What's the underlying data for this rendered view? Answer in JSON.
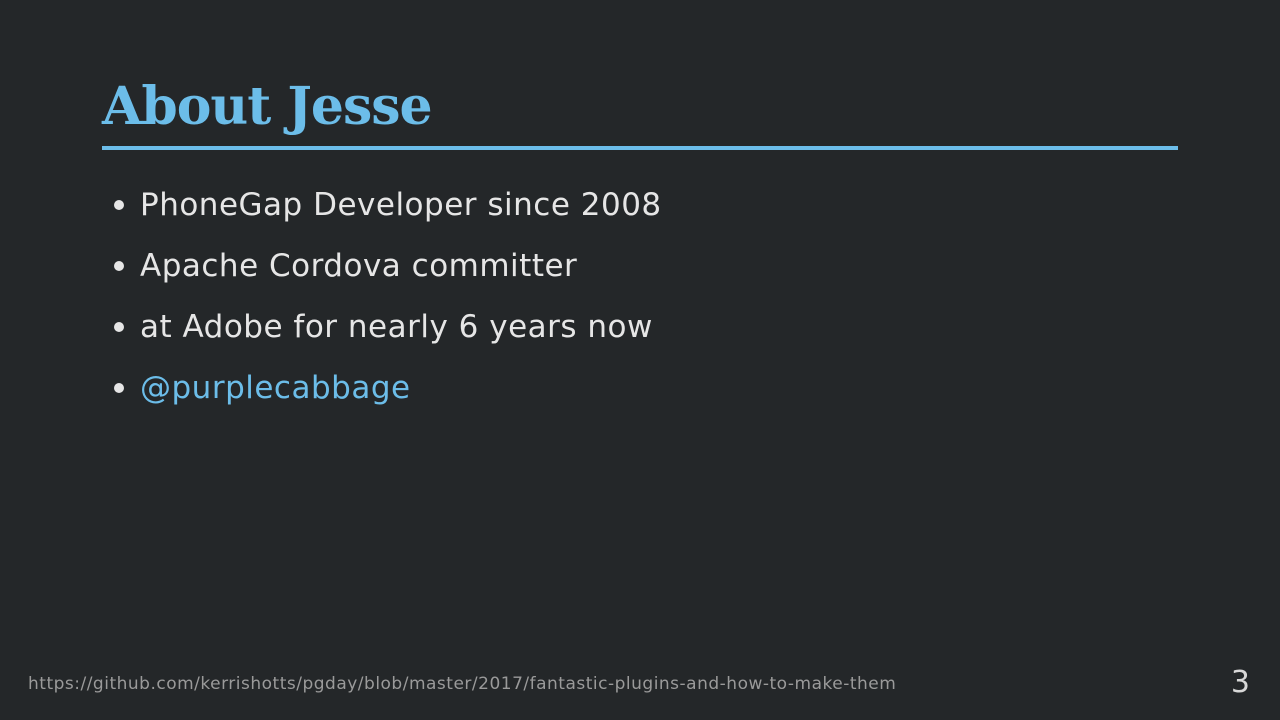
{
  "slide": {
    "title": "About Jesse",
    "bullets": [
      {
        "text": "PhoneGap Developer since 2008"
      },
      {
        "text": "Apache Cordova committer"
      },
      {
        "text": "at Adobe for nearly 6 years now"
      },
      {
        "text": "@purplecabbage",
        "is_link": true
      }
    ],
    "footer_url": "https://github.com/kerrishotts/pgday/blob/master/2017/fantastic-plugins-and-how-to-make-them",
    "slide_number": "3"
  },
  "colors": {
    "background": "#242729",
    "accent": "#6cbde9",
    "text": "#e6e6e6",
    "footer_text": "#9a9a9a"
  }
}
